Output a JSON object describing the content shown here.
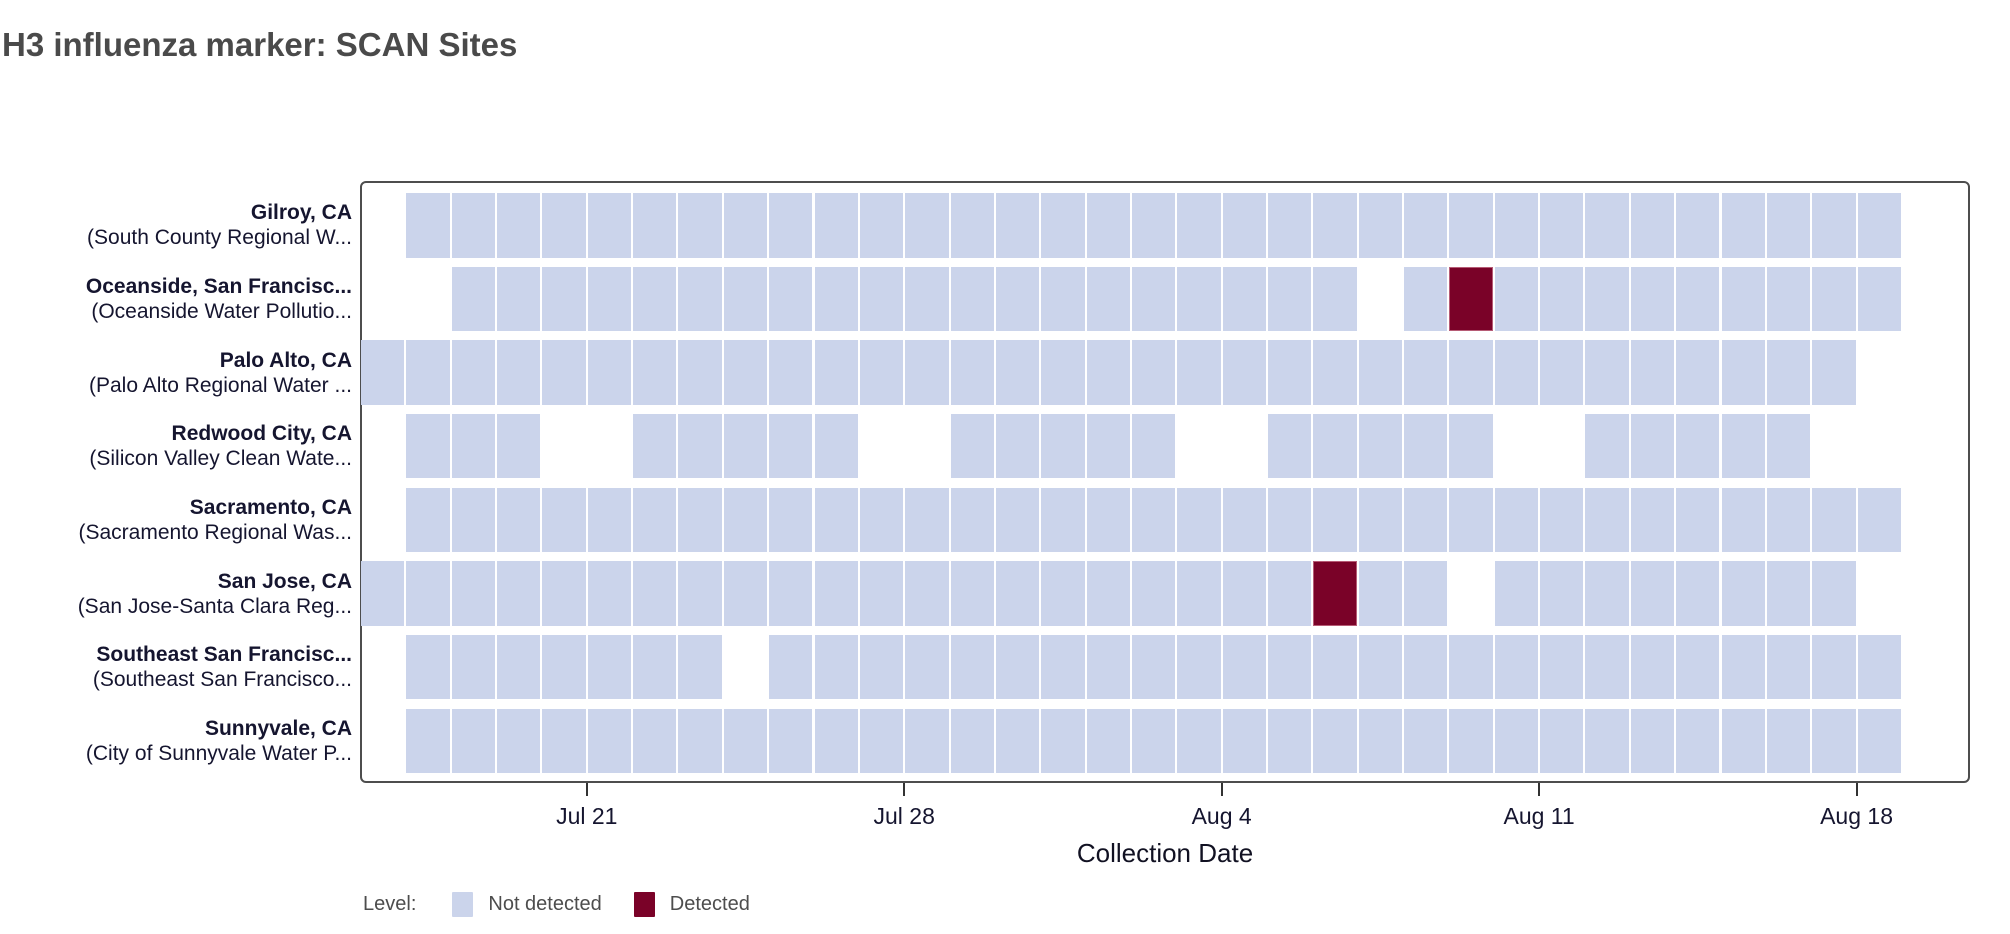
{
  "title": "H3 influenza marker: SCAN Sites",
  "colors": {
    "not_detected": "#cbd4eb",
    "detected": "#7a0228",
    "axis_text": "#15152f",
    "title_text": "#4a4a4a",
    "legend_text": "#4d4d4d",
    "panel_border": "#4d4d4d"
  },
  "legend": {
    "label": "Level:",
    "items": [
      {
        "name": "Not detected",
        "color_key": "not_detected"
      },
      {
        "name": "Detected",
        "color_key": "detected"
      }
    ]
  },
  "chart_data": {
    "type": "heatmap",
    "title": "H3 influenza marker: SCAN Sites",
    "xlabel": "Collection Date",
    "ylabel": "",
    "grid": false,
    "legend_position": "bottom-left",
    "x_ticks": [
      "Jul 21",
      "Jul 28",
      "Aug 4",
      "Aug 11",
      "Aug 18"
    ],
    "days": [
      "Jul 16",
      "Jul 17",
      "Jul 18",
      "Jul 19",
      "Jul 20",
      "Jul 21",
      "Jul 22",
      "Jul 23",
      "Jul 24",
      "Jul 25",
      "Jul 26",
      "Jul 27",
      "Jul 28",
      "Jul 29",
      "Jul 30",
      "Jul 31",
      "Aug 1",
      "Aug 2",
      "Aug 3",
      "Aug 4",
      "Aug 5",
      "Aug 6",
      "Aug 7",
      "Aug 8",
      "Aug 9",
      "Aug 10",
      "Aug 11",
      "Aug 12",
      "Aug 13",
      "Aug 14",
      "Aug 15",
      "Aug 16",
      "Aug 17",
      "Aug 18"
    ],
    "levels": [
      "Not detected",
      "Detected"
    ],
    "sites": [
      {
        "city": "Gilroy, CA",
        "facility": "(South County Regional W...",
        "sampled": [
          [
            "Jul 17",
            "Aug 18"
          ]
        ],
        "detected": []
      },
      {
        "city": "Oceanside, San Francisc...",
        "facility": "(Oceanside Water Pollutio...",
        "sampled": [
          [
            "Jul 18",
            "Aug 6"
          ],
          [
            "Aug 8",
            "Aug 18"
          ]
        ],
        "detected": [
          "Aug 9"
        ]
      },
      {
        "city": "Palo Alto, CA",
        "facility": "(Palo Alto Regional Water ...",
        "sampled": [
          [
            "Jul 16",
            "Aug 17"
          ]
        ],
        "detected": []
      },
      {
        "city": "Redwood City, CA",
        "facility": "(Silicon Valley Clean Wate...",
        "sampled": [
          [
            "Jul 17",
            "Jul 19"
          ],
          [
            "Jul 22",
            "Jul 26"
          ],
          [
            "Jul 29",
            "Aug 2"
          ],
          [
            "Aug 5",
            "Aug 9"
          ],
          [
            "Aug 12",
            "Aug 16"
          ]
        ],
        "detected": []
      },
      {
        "city": "Sacramento, CA",
        "facility": "(Sacramento Regional Was...",
        "sampled": [
          [
            "Jul 17",
            "Aug 18"
          ]
        ],
        "detected": []
      },
      {
        "city": "San Jose, CA",
        "facility": "(San Jose-Santa Clara Reg...",
        "sampled": [
          [
            "Jul 16",
            "Aug 8"
          ],
          [
            "Aug 10",
            "Aug 17"
          ]
        ],
        "detected": [
          "Aug 6"
        ]
      },
      {
        "city": "Southeast San Francisc...",
        "facility": "(Southeast San Francisco...",
        "sampled": [
          [
            "Jul 17",
            "Jul 23"
          ],
          [
            "Jul 25",
            "Aug 18"
          ]
        ],
        "detected": []
      },
      {
        "city": "Sunnyvale, CA",
        "facility": "(City of Sunnyvale Water P...",
        "sampled": [
          [
            "Jul 17",
            "Aug 18"
          ]
        ],
        "detected": []
      }
    ]
  }
}
